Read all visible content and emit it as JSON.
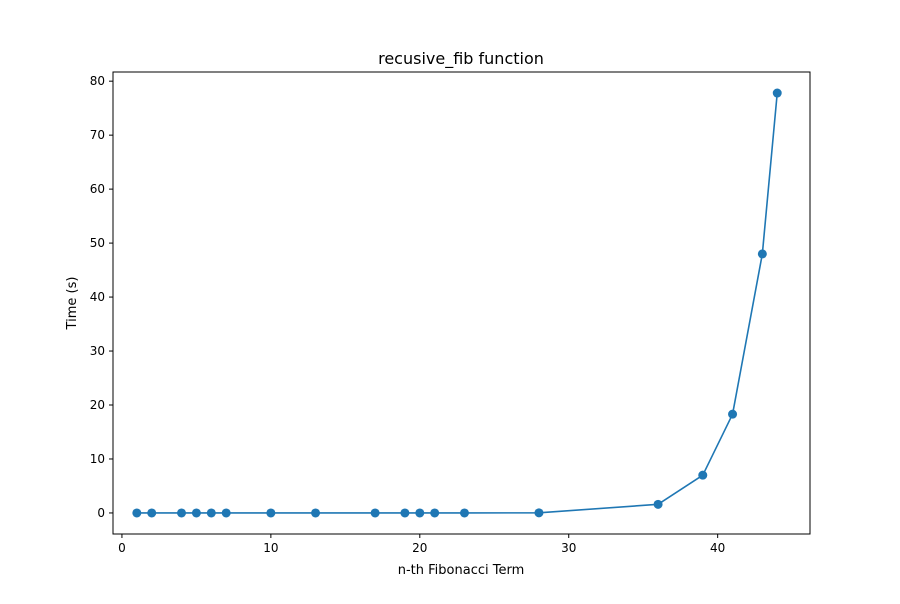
{
  "chart_data": {
    "type": "line",
    "title": "recusive_fib function",
    "xlabel": "n-th Fibonacci Term",
    "ylabel": "Time (s)",
    "xlim": [
      -0.6,
      46.2
    ],
    "ylim": [
      -3.9,
      81.7
    ],
    "xticks": [
      0,
      10,
      20,
      30,
      40
    ],
    "yticks": [
      0,
      10,
      20,
      30,
      40,
      50,
      60,
      70,
      80
    ],
    "grid": false,
    "legend": "none",
    "series": [
      {
        "color": "#1f77b4",
        "marker": "circle",
        "x": [
          1,
          2,
          4,
          5,
          6,
          7,
          10,
          13,
          17,
          19,
          20,
          21,
          23,
          28,
          36,
          39,
          41,
          43,
          44
        ],
        "y": [
          0,
          0,
          0,
          0,
          0,
          0,
          0,
          0,
          0,
          0,
          0,
          0,
          0,
          0.02,
          1.6,
          7.0,
          18.3,
          48.0,
          77.8
        ]
      }
    ]
  }
}
